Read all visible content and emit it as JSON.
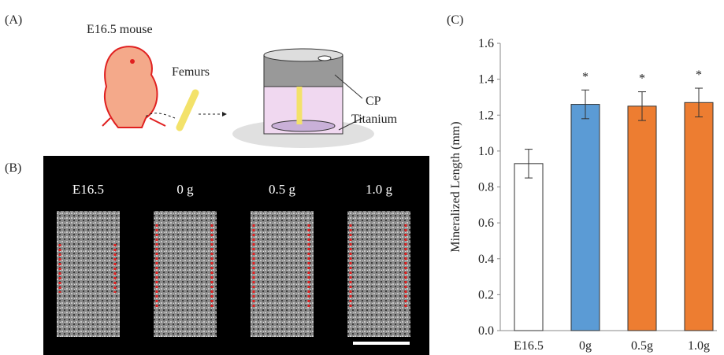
{
  "panel_a": {
    "label": "(A)",
    "mouse": "E16.5 mouse",
    "femurs": "Femurs",
    "cp": "CP",
    "titanium": "Titanium"
  },
  "panel_b": {
    "label": "(B)",
    "images": [
      "E16.5",
      "0 g",
      "0.5 g",
      "1.0 g"
    ]
  },
  "chart_data": {
    "type": "bar",
    "label": "(C)",
    "ylabel": "Mineralized Length (mm)",
    "categories": [
      "E16.5",
      "0g",
      "0.5g",
      "1.0g"
    ],
    "values": [
      0.93,
      1.26,
      1.25,
      1.27
    ],
    "errors": [
      0.08,
      0.08,
      0.08,
      0.08
    ],
    "colors": [
      "#ffffff",
      "#5b9bd5",
      "#ed7d31",
      "#ed7d31"
    ],
    "significance": [
      null,
      "*",
      "*",
      "*"
    ],
    "ylim": [
      0,
      1.6
    ],
    "yticks": [
      {
        "value": 0,
        "label": "0.0"
      },
      0.2,
      0.4,
      0.6,
      0.8,
      {
        "value": 1,
        "label": "1.0"
      },
      1.2,
      1.4,
      1.6
    ],
    "grid": false
  }
}
